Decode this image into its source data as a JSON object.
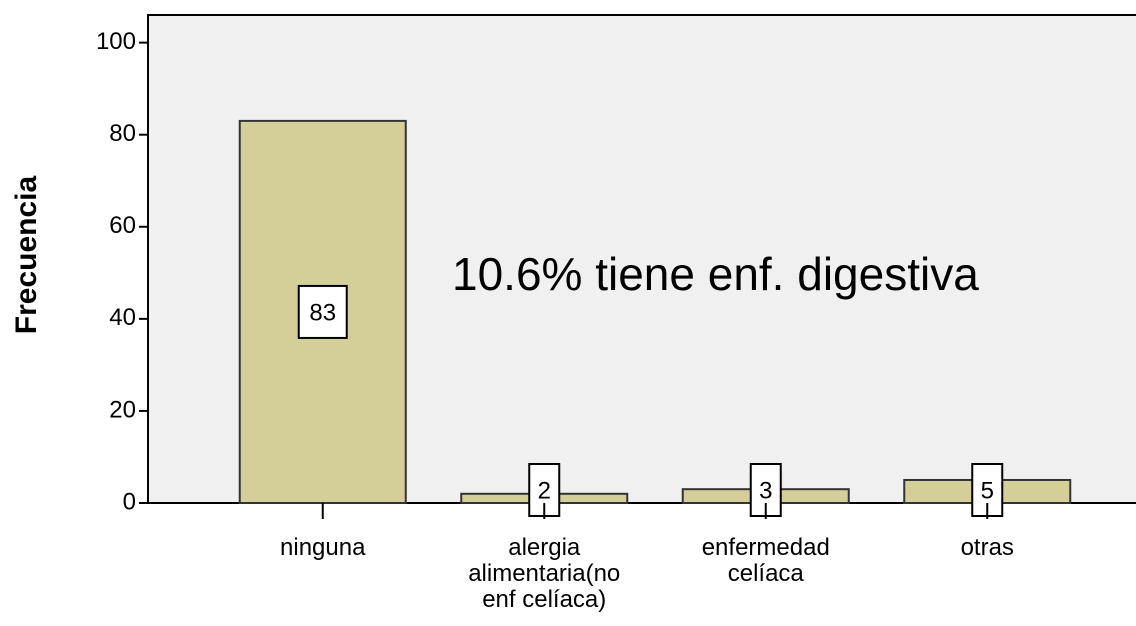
{
  "chart_data": {
    "type": "bar",
    "y_label": "Frecuencia",
    "annotation": "10.6% tiene enf. digestiva",
    "categories": [
      "ninguna",
      "alergia alimentaria(no enf celíaca)",
      "enfermedad celíaca",
      "otras"
    ],
    "values": [
      83,
      2,
      3,
      5
    ],
    "color": "#d4ce98",
    "ylim": [
      0,
      106
    ],
    "yticks": [
      0,
      20,
      40,
      60,
      80,
      100
    ],
    "grid": false
  }
}
